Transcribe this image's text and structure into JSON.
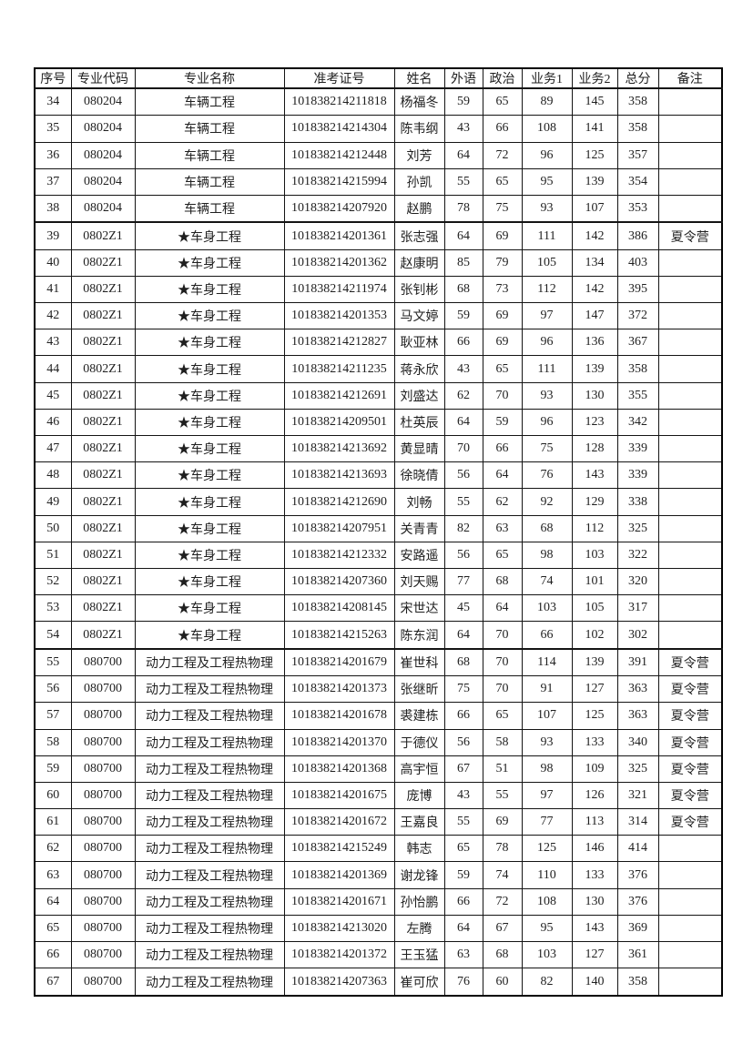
{
  "table": {
    "columns": [
      "序号",
      "专业代码",
      "专业名称",
      "准考证号",
      "姓名",
      "外语",
      "政治",
      "业务1",
      "业务2",
      "总分",
      "备注"
    ],
    "group_start_rows": [
      "39",
      "55"
    ],
    "rows": [
      [
        "34",
        "080204",
        "车辆工程",
        "101838214211818",
        "杨福冬",
        "59",
        "65",
        "89",
        "145",
        "358",
        ""
      ],
      [
        "35",
        "080204",
        "车辆工程",
        "101838214214304",
        "陈韦纲",
        "43",
        "66",
        "108",
        "141",
        "358",
        ""
      ],
      [
        "36",
        "080204",
        "车辆工程",
        "101838214212448",
        "刘芳",
        "64",
        "72",
        "96",
        "125",
        "357",
        ""
      ],
      [
        "37",
        "080204",
        "车辆工程",
        "101838214215994",
        "孙凯",
        "55",
        "65",
        "95",
        "139",
        "354",
        ""
      ],
      [
        "38",
        "080204",
        "车辆工程",
        "101838214207920",
        "赵鹏",
        "78",
        "75",
        "93",
        "107",
        "353",
        ""
      ],
      [
        "39",
        "0802Z1",
        "★车身工程",
        "101838214201361",
        "张志强",
        "64",
        "69",
        "111",
        "142",
        "386",
        "夏令营"
      ],
      [
        "40",
        "0802Z1",
        "★车身工程",
        "101838214201362",
        "赵康明",
        "85",
        "79",
        "105",
        "134",
        "403",
        ""
      ],
      [
        "41",
        "0802Z1",
        "★车身工程",
        "101838214211974",
        "张钊彬",
        "68",
        "73",
        "112",
        "142",
        "395",
        ""
      ],
      [
        "42",
        "0802Z1",
        "★车身工程",
        "101838214201353",
        "马文婷",
        "59",
        "69",
        "97",
        "147",
        "372",
        ""
      ],
      [
        "43",
        "0802Z1",
        "★车身工程",
        "101838214212827",
        "耿亚林",
        "66",
        "69",
        "96",
        "136",
        "367",
        ""
      ],
      [
        "44",
        "0802Z1",
        "★车身工程",
        "101838214211235",
        "蒋永欣",
        "43",
        "65",
        "111",
        "139",
        "358",
        ""
      ],
      [
        "45",
        "0802Z1",
        "★车身工程",
        "101838214212691",
        "刘盛达",
        "62",
        "70",
        "93",
        "130",
        "355",
        ""
      ],
      [
        "46",
        "0802Z1",
        "★车身工程",
        "101838214209501",
        "杜英辰",
        "64",
        "59",
        "96",
        "123",
        "342",
        ""
      ],
      [
        "47",
        "0802Z1",
        "★车身工程",
        "101838214213692",
        "黄显晴",
        "70",
        "66",
        "75",
        "128",
        "339",
        ""
      ],
      [
        "48",
        "0802Z1",
        "★车身工程",
        "101838214213693",
        "徐晓倩",
        "56",
        "64",
        "76",
        "143",
        "339",
        ""
      ],
      [
        "49",
        "0802Z1",
        "★车身工程",
        "101838214212690",
        "刘畅",
        "55",
        "62",
        "92",
        "129",
        "338",
        ""
      ],
      [
        "50",
        "0802Z1",
        "★车身工程",
        "101838214207951",
        "关青青",
        "82",
        "63",
        "68",
        "112",
        "325",
        ""
      ],
      [
        "51",
        "0802Z1",
        "★车身工程",
        "101838214212332",
        "安路遥",
        "56",
        "65",
        "98",
        "103",
        "322",
        ""
      ],
      [
        "52",
        "0802Z1",
        "★车身工程",
        "101838214207360",
        "刘天赐",
        "77",
        "68",
        "74",
        "101",
        "320",
        ""
      ],
      [
        "53",
        "0802Z1",
        "★车身工程",
        "101838214208145",
        "宋世达",
        "45",
        "64",
        "103",
        "105",
        "317",
        ""
      ],
      [
        "54",
        "0802Z1",
        "★车身工程",
        "101838214215263",
        "陈东润",
        "64",
        "70",
        "66",
        "102",
        "302",
        ""
      ],
      [
        "55",
        "080700",
        "动力工程及工程热物理",
        "101838214201679",
        "崔世科",
        "68",
        "70",
        "114",
        "139",
        "391",
        "夏令营"
      ],
      [
        "56",
        "080700",
        "动力工程及工程热物理",
        "101838214201373",
        "张继昕",
        "75",
        "70",
        "91",
        "127",
        "363",
        "夏令营"
      ],
      [
        "57",
        "080700",
        "动力工程及工程热物理",
        "101838214201678",
        "裘建栋",
        "66",
        "65",
        "107",
        "125",
        "363",
        "夏令营"
      ],
      [
        "58",
        "080700",
        "动力工程及工程热物理",
        "101838214201370",
        "于德仪",
        "56",
        "58",
        "93",
        "133",
        "340",
        "夏令营"
      ],
      [
        "59",
        "080700",
        "动力工程及工程热物理",
        "101838214201368",
        "高宇恒",
        "67",
        "51",
        "98",
        "109",
        "325",
        "夏令营"
      ],
      [
        "60",
        "080700",
        "动力工程及工程热物理",
        "101838214201675",
        "庞博",
        "43",
        "55",
        "97",
        "126",
        "321",
        "夏令营"
      ],
      [
        "61",
        "080700",
        "动力工程及工程热物理",
        "101838214201672",
        "王嘉良",
        "55",
        "69",
        "77",
        "113",
        "314",
        "夏令营"
      ],
      [
        "62",
        "080700",
        "动力工程及工程热物理",
        "101838214215249",
        "韩志",
        "65",
        "78",
        "125",
        "146",
        "414",
        ""
      ],
      [
        "63",
        "080700",
        "动力工程及工程热物理",
        "101838214201369",
        "谢龙锋",
        "59",
        "74",
        "110",
        "133",
        "376",
        ""
      ],
      [
        "64",
        "080700",
        "动力工程及工程热物理",
        "101838214201671",
        "孙怡鹏",
        "66",
        "72",
        "108",
        "130",
        "376",
        ""
      ],
      [
        "65",
        "080700",
        "动力工程及工程热物理",
        "101838214213020",
        "左腾",
        "64",
        "67",
        "95",
        "143",
        "369",
        ""
      ],
      [
        "66",
        "080700",
        "动力工程及工程热物理",
        "101838214201372",
        "王玉猛",
        "63",
        "68",
        "103",
        "127",
        "361",
        ""
      ],
      [
        "67",
        "080700",
        "动力工程及工程热物理",
        "101838214207363",
        "崔可欣",
        "76",
        "60",
        "82",
        "140",
        "358",
        ""
      ]
    ]
  }
}
